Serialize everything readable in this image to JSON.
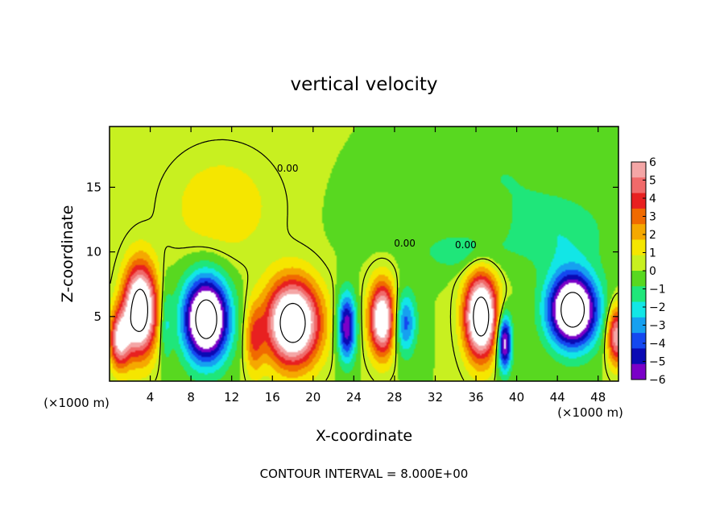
{
  "chart_data": {
    "type": "heatmap",
    "title": "vertical velocity",
    "xlabel": "X-coordinate",
    "ylabel": "Z-coordinate",
    "x_unit_left": "(×1000 m)",
    "x_unit_right": "(×1000 m)",
    "footer": "CONTOUR INTERVAL = 8.000E+00",
    "xlim": [
      0,
      50
    ],
    "ylim": [
      0,
      19.7
    ],
    "x_ticks": [
      4,
      8,
      12,
      16,
      20,
      24,
      28,
      32,
      36,
      40,
      44,
      48
    ],
    "y_ticks": [
      5,
      10,
      15
    ],
    "colorbar": {
      "ticks": [
        6,
        5,
        4,
        3,
        2,
        1,
        0,
        -1,
        -2,
        -3,
        -4,
        -5,
        -6
      ],
      "colors": [
        "#f4a6a6",
        "#f06a6a",
        "#e82020",
        "#f06a00",
        "#f5a800",
        "#f5e600",
        "#c8f020",
        "#58d820",
        "#1fe67a",
        "#12e6e6",
        "#16a0f0",
        "#1448f0",
        "#0a0ab4",
        "#7a00c8"
      ],
      "min": -6,
      "max": 6
    },
    "contour_labels": [
      {
        "text": "0.00",
        "x": 17.5,
        "y": 16.2
      },
      {
        "text": "0.00",
        "x": 29.0,
        "y": 10.4
      },
      {
        "text": "0.00",
        "x": 35.0,
        "y": 10.3
      }
    ],
    "cells": [
      {
        "x": 3.0,
        "z": 5.5,
        "sx": 1.6,
        "sz": 3.4,
        "w": 10
      },
      {
        "x": 1.0,
        "z": 3.2,
        "sx": 1.0,
        "sz": 2.2,
        "w": 6
      },
      {
        "x": 9.5,
        "z": 4.8,
        "sx": 2.2,
        "sz": 3.2,
        "w": -10
      },
      {
        "x": 18.0,
        "z": 4.5,
        "sx": 2.6,
        "sz": 3.2,
        "w": 10
      },
      {
        "x": 23.3,
        "z": 4.2,
        "sx": 0.9,
        "sz": 2.6,
        "w": -6
      },
      {
        "x": 26.8,
        "z": 4.8,
        "sx": 1.3,
        "sz": 2.8,
        "w": 8
      },
      {
        "x": 29.0,
        "z": 4.5,
        "sx": 1.1,
        "sz": 2.4,
        "w": -4
      },
      {
        "x": 36.5,
        "z": 5.0,
        "sx": 1.6,
        "sz": 3.2,
        "w": 10
      },
      {
        "x": 38.8,
        "z": 3.0,
        "sx": 0.7,
        "sz": 2.2,
        "w": -7
      },
      {
        "x": 45.5,
        "z": 5.5,
        "sx": 2.4,
        "sz": 2.8,
        "w": -10
      },
      {
        "x": 49.8,
        "z": 3.5,
        "sx": 0.9,
        "sz": 2.2,
        "w": 6
      },
      {
        "x": 14.2,
        "z": 3.2,
        "sx": 0.9,
        "sz": 2.6,
        "w": 3
      },
      {
        "x": 5.5,
        "z": 4.5,
        "sx": 0.6,
        "sz": 3.0,
        "w": -2
      },
      {
        "x": 11.0,
        "z": 13.5,
        "sx": 5.0,
        "sz": 4.0,
        "w": 1.6
      },
      {
        "x": 34.5,
        "z": 10.0,
        "sx": 4.0,
        "sz": 1.5,
        "w": -1.5
      },
      {
        "x": 44.0,
        "z": 11.5,
        "sx": 5.0,
        "sz": 3.0,
        "w": -1.6
      },
      {
        "x": 38.5,
        "z": 16.0,
        "sx": 5.0,
        "sz": 3.0,
        "w": -0.8
      },
      {
        "x": 26.0,
        "z": 12.5,
        "sx": 3.0,
        "sz": 2.5,
        "w": -0.6
      }
    ]
  }
}
